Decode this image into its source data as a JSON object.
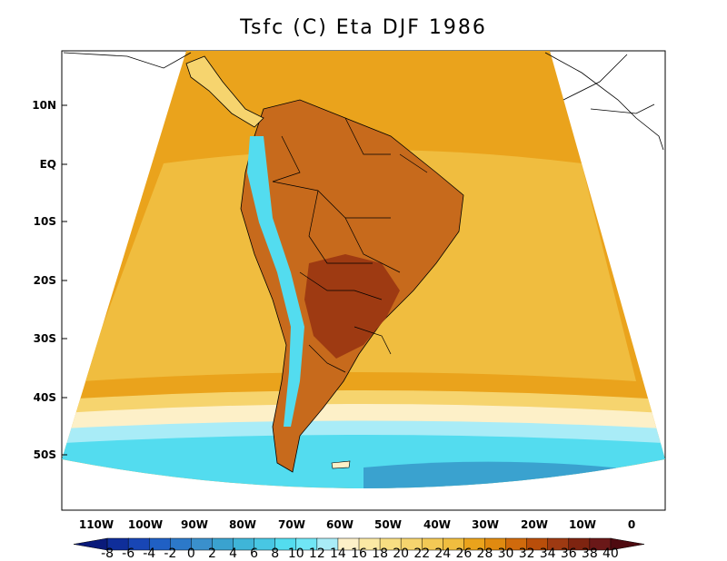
{
  "title": "Tsfc (C) Eta DJF 1986",
  "colors": {
    "background": "#ffffff",
    "ocean_warm": "#eaa31c",
    "ocean_mid": "#f0bd3f",
    "ocean_light": "#f6d46e",
    "cream": "#fdf0c8",
    "cyan_light": "#a9ecf7",
    "cyan": "#53dcef",
    "blue_mid": "#3aa2cf",
    "land_hot": "#9e3a12",
    "land_warm": "#c76a1c",
    "border": "#000000"
  },
  "lat_labels": [
    "10N",
    "EQ",
    "10S",
    "20S",
    "30S",
    "40S",
    "50S"
  ],
  "lon_labels": [
    "110W",
    "100W",
    "90W",
    "80W",
    "70W",
    "60W",
    "50W",
    "40W",
    "30W",
    "20W",
    "10W",
    "0"
  ],
  "colorbar": {
    "labels": [
      "-8",
      "-6",
      "-4",
      "-2",
      "0",
      "2",
      "4",
      "6",
      "8",
      "10",
      "12",
      "14",
      "16",
      "18",
      "20",
      "22",
      "24",
      "26",
      "28",
      "30",
      "32",
      "34",
      "36",
      "38",
      "40"
    ],
    "colors": [
      "#0a1a7a",
      "#0f2e9a",
      "#1846b5",
      "#2060c4",
      "#2c79c9",
      "#3a90cc",
      "#3aa2cf",
      "#3fb5d8",
      "#48c7e3",
      "#53dcef",
      "#70e6f5",
      "#a9ecf7",
      "#fdf0c8",
      "#fbe9a4",
      "#f8de82",
      "#f6d46e",
      "#f3c955",
      "#f0bd3f",
      "#eaa31c",
      "#e08a10",
      "#d06a0c",
      "#b94e0a",
      "#9e3a12",
      "#7e2410",
      "#6a1818",
      "#4e0a10"
    ]
  }
}
